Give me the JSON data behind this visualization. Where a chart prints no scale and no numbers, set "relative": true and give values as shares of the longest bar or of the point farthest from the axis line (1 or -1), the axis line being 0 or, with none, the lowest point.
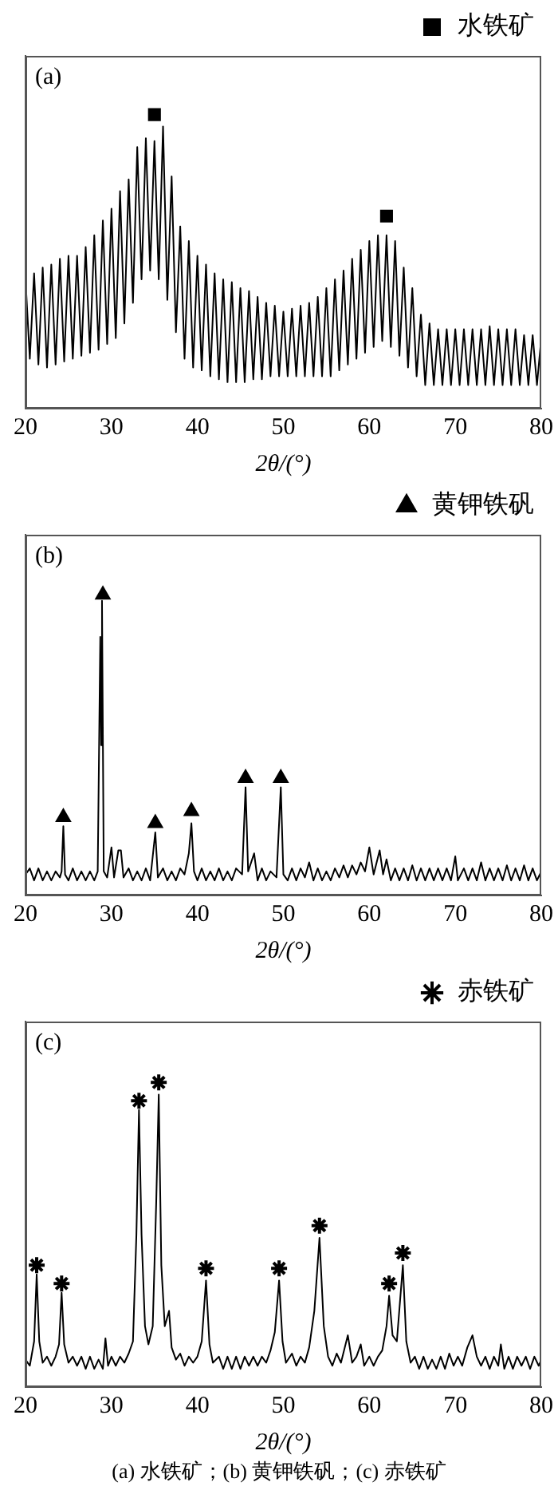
{
  "chart_data": [
    {
      "type": "line",
      "relative": true,
      "xlabel": "2θ/(°)",
      "xlim": [
        20,
        80
      ],
      "xticks": [
        20,
        30,
        40,
        50,
        60,
        70,
        80
      ],
      "grid": false,
      "legend": "top right",
      "annotations": [
        "(a)"
      ],
      "x": [
        20,
        20.5,
        21,
        21.5,
        22,
        22.5,
        23,
        23.5,
        24,
        24.5,
        25,
        25.5,
        26,
        26.5,
        27,
        27.5,
        28,
        28.5,
        29,
        29.5,
        30,
        30.5,
        31,
        31.5,
        32,
        32.5,
        33,
        33.5,
        34,
        34.5,
        35,
        35.5,
        36,
        36.5,
        37,
        37.5,
        38,
        38.5,
        39,
        39.5,
        40,
        40.5,
        41,
        41.5,
        42,
        42.5,
        43,
        43.5,
        44,
        44.5,
        45,
        45.5,
        46,
        46.5,
        47,
        47.5,
        48,
        48.5,
        49,
        49.5,
        50,
        50.5,
        51,
        51.5,
        52,
        52.5,
        53,
        53.5,
        54,
        54.5,
        55,
        55.5,
        56,
        56.5,
        57,
        57.5,
        58,
        58.5,
        59,
        59.5,
        60,
        60.5,
        61,
        61.5,
        62,
        62.5,
        63,
        63.5,
        64,
        64.5,
        65,
        65.5,
        66,
        66.5,
        67,
        67.5,
        68,
        68.5,
        69,
        69.5,
        70,
        70.5,
        71,
        71.5,
        72,
        72.5,
        73,
        73.5,
        74,
        74.5,
        75,
        75.5,
        76,
        76.5,
        77,
        77.5,
        78,
        78.5,
        79,
        79.5,
        80
      ],
      "series": [
        {
          "color": "#000000",
          "values": [
            0.44,
            0.17,
            0.46,
            0.15,
            0.48,
            0.14,
            0.49,
            0.15,
            0.51,
            0.16,
            0.52,
            0.17,
            0.52,
            0.18,
            0.55,
            0.19,
            0.59,
            0.2,
            0.64,
            0.22,
            0.68,
            0.24,
            0.74,
            0.29,
            0.78,
            0.36,
            0.89,
            0.44,
            0.92,
            0.47,
            0.91,
            0.44,
            0.96,
            0.37,
            0.79,
            0.26,
            0.62,
            0.17,
            0.57,
            0.14,
            0.52,
            0.13,
            0.49,
            0.11,
            0.46,
            0.1,
            0.44,
            0.09,
            0.43,
            0.09,
            0.41,
            0.09,
            0.4,
            0.1,
            0.38,
            0.1,
            0.36,
            0.11,
            0.35,
            0.11,
            0.33,
            0.11,
            0.34,
            0.11,
            0.35,
            0.11,
            0.36,
            0.11,
            0.38,
            0.11,
            0.41,
            0.11,
            0.44,
            0.13,
            0.47,
            0.15,
            0.51,
            0.17,
            0.54,
            0.19,
            0.57,
            0.21,
            0.59,
            0.23,
            0.59,
            0.21,
            0.57,
            0.18,
            0.48,
            0.14,
            0.41,
            0.11,
            0.32,
            0.08,
            0.29,
            0.08,
            0.27,
            0.08,
            0.27,
            0.08,
            0.27,
            0.08,
            0.27,
            0.08,
            0.27,
            0.08,
            0.27,
            0.08,
            0.28,
            0.08,
            0.27,
            0.08,
            0.27,
            0.08,
            0.27,
            0.08,
            0.25,
            0.08,
            0.25,
            0.08,
            0.24
          ]
        },
        {
          "type": "scatter",
          "name": "水铁矿",
          "color": "#000000",
          "marker": "square",
          "x": [
            35,
            62
          ],
          "values": [
            1,
            0.655
          ]
        }
      ]
    },
    {
      "type": "line",
      "relative": true,
      "xlabel": "2θ/(°)",
      "xlim": [
        20,
        80
      ],
      "xticks": [
        20,
        30,
        40,
        50,
        60,
        70,
        80
      ],
      "grid": false,
      "legend": "top right",
      "annotations": [
        "(b)"
      ],
      "x": [
        20,
        20.5,
        21,
        21.5,
        22,
        22.5,
        23,
        23.5,
        24,
        24.2,
        24.4,
        24.6,
        25,
        25.5,
        26,
        26.5,
        27,
        27.5,
        28,
        28.4,
        28.7,
        28.8,
        28.9,
        29.1,
        29.5,
        30,
        30.3,
        30.8,
        31.1,
        31.4,
        32,
        32.5,
        33,
        33.5,
        34,
        34.5,
        35.1,
        35.4,
        36,
        36.5,
        37,
        37.5,
        38,
        38.5,
        39,
        39.3,
        39.6,
        40,
        40.5,
        41,
        41.5,
        42,
        42.5,
        43,
        43.5,
        44,
        44.5,
        45.2,
        45.6,
        45.9,
        46.6,
        47,
        47.5,
        48,
        48.5,
        49.2,
        49.7,
        50,
        50.5,
        51,
        51.5,
        52,
        52.5,
        53,
        53.5,
        54,
        54.5,
        55,
        55.5,
        56,
        56.5,
        57,
        57.5,
        58,
        58.5,
        59,
        59.5,
        60,
        60.5,
        61.2,
        61.6,
        62,
        62.5,
        63,
        63.5,
        64,
        64.5,
        65,
        65.5,
        66,
        66.5,
        67,
        67.5,
        68,
        68.5,
        69,
        69.5,
        70,
        70.3,
        71,
        71.5,
        72,
        72.5,
        73,
        73.5,
        74,
        74.5,
        75,
        75.5,
        76,
        76.5,
        77,
        77.5,
        78,
        78.5,
        79,
        79.5,
        80
      ],
      "series": [
        {
          "color": "#000000",
          "values": [
            0.07,
            0.09,
            0.05,
            0.09,
            0.05,
            0.08,
            0.05,
            0.08,
            0.06,
            0.08,
            0.23,
            0.07,
            0.05,
            0.09,
            0.05,
            0.08,
            0.05,
            0.08,
            0.05,
            0.08,
            0.86,
            0.5,
            0.98,
            0.08,
            0.06,
            0.16,
            0.06,
            0.15,
            0.15,
            0.06,
            0.09,
            0.05,
            0.08,
            0.05,
            0.09,
            0.05,
            0.21,
            0.06,
            0.09,
            0.05,
            0.08,
            0.05,
            0.09,
            0.07,
            0.14,
            0.24,
            0.08,
            0.05,
            0.09,
            0.05,
            0.08,
            0.05,
            0.09,
            0.05,
            0.08,
            0.05,
            0.09,
            0.07,
            0.36,
            0.08,
            0.14,
            0.05,
            0.09,
            0.05,
            0.08,
            0.06,
            0.36,
            0.07,
            0.05,
            0.09,
            0.05,
            0.09,
            0.06,
            0.11,
            0.05,
            0.09,
            0.05,
            0.08,
            0.05,
            0.09,
            0.06,
            0.1,
            0.06,
            0.1,
            0.07,
            0.11,
            0.08,
            0.16,
            0.07,
            0.15,
            0.07,
            0.12,
            0.05,
            0.09,
            0.05,
            0.09,
            0.05,
            0.1,
            0.05,
            0.09,
            0.05,
            0.09,
            0.05,
            0.09,
            0.05,
            0.09,
            0.05,
            0.13,
            0.05,
            0.09,
            0.05,
            0.09,
            0.05,
            0.11,
            0.05,
            0.09,
            0.05,
            0.09,
            0.05,
            0.1,
            0.05,
            0.09,
            0.05,
            0.1,
            0.05,
            0.09,
            0.05,
            0.08
          ]
        },
        {
          "type": "scatter",
          "name": "黄钾铁矾",
          "color": "#000000",
          "marker": "triangle",
          "x": [
            24.4,
            29,
            35.1,
            39.3,
            45.6,
            49.7
          ],
          "values": [
            0.26,
            1,
            0.24,
            0.28,
            0.39,
            0.39
          ]
        }
      ]
    },
    {
      "type": "line",
      "relative": true,
      "xlabel": "2θ/(°)",
      "xlim": [
        20,
        80
      ],
      "xticks": [
        20,
        30,
        40,
        50,
        60,
        70,
        80
      ],
      "grid": false,
      "legend": "top right",
      "annotations": [
        "(c)",
        "(a) 水铁矿；(b) 黄钾铁矾；(c) 赤铁矿"
      ],
      "x": [
        20,
        20.5,
        21,
        21.3,
        21.6,
        22,
        22.5,
        23,
        23.5,
        23.9,
        24.2,
        24.5,
        25,
        25.5,
        26,
        26.5,
        27,
        27.5,
        28,
        28.5,
        29,
        29.3,
        29.6,
        30,
        30.5,
        31,
        31.5,
        32,
        32.5,
        32.9,
        33.2,
        33.5,
        33.9,
        34.3,
        34.8,
        35.2,
        35.5,
        35.8,
        36.2,
        36.7,
        37,
        37.5,
        38,
        38.5,
        39,
        39.5,
        40,
        40.5,
        41,
        41.4,
        41.8,
        42.5,
        43,
        43.5,
        44,
        44.5,
        45,
        45.5,
        46,
        46.5,
        47,
        47.5,
        48,
        48.5,
        49,
        49.5,
        49.9,
        50.3,
        51,
        51.5,
        52,
        52.5,
        53,
        53.6,
        54.2,
        54.7,
        55.2,
        55.7,
        56.2,
        56.7,
        57.5,
        58,
        58.5,
        59,
        59.4,
        60,
        60.5,
        61,
        61.5,
        62,
        62.3,
        62.7,
        63.2,
        63.9,
        64.3,
        64.8,
        65.3,
        65.8,
        66.3,
        66.8,
        67.3,
        67.8,
        68.3,
        68.8,
        69.3,
        69.8,
        70.3,
        70.8,
        71.4,
        72,
        72.5,
        73,
        73.5,
        74,
        74.5,
        75,
        75.3,
        75.7,
        76.2,
        76.7,
        77.2,
        77.7,
        78.2,
        78.7,
        79.2,
        79.7,
        80
      ],
      "series": [
        {
          "color": "#000000",
          "values": [
            0.09,
            0.07,
            0.15,
            0.37,
            0.15,
            0.08,
            0.1,
            0.07,
            0.1,
            0.14,
            0.31,
            0.14,
            0.08,
            0.1,
            0.07,
            0.1,
            0.06,
            0.1,
            0.06,
            0.09,
            0.06,
            0.16,
            0.07,
            0.1,
            0.07,
            0.1,
            0.08,
            0.11,
            0.15,
            0.5,
            0.91,
            0.5,
            0.2,
            0.14,
            0.2,
            0.6,
            0.96,
            0.4,
            0.2,
            0.25,
            0.13,
            0.09,
            0.11,
            0.07,
            0.1,
            0.08,
            0.1,
            0.15,
            0.35,
            0.14,
            0.08,
            0.1,
            0.06,
            0.1,
            0.06,
            0.1,
            0.06,
            0.1,
            0.07,
            0.1,
            0.07,
            0.1,
            0.08,
            0.12,
            0.18,
            0.35,
            0.15,
            0.08,
            0.11,
            0.07,
            0.1,
            0.08,
            0.13,
            0.25,
            0.49,
            0.2,
            0.1,
            0.07,
            0.11,
            0.08,
            0.17,
            0.08,
            0.1,
            0.14,
            0.07,
            0.1,
            0.07,
            0.1,
            0.12,
            0.2,
            0.3,
            0.17,
            0.15,
            0.4,
            0.15,
            0.08,
            0.1,
            0.06,
            0.1,
            0.06,
            0.09,
            0.06,
            0.1,
            0.06,
            0.11,
            0.07,
            0.1,
            0.07,
            0.13,
            0.17,
            0.1,
            0.07,
            0.1,
            0.06,
            0.1,
            0.07,
            0.14,
            0.06,
            0.1,
            0.06,
            0.1,
            0.07,
            0.1,
            0.06,
            0.1,
            0.07,
            0.09
          ]
        },
        {
          "type": "scatter",
          "name": "赤铁矿",
          "color": "#000000",
          "marker": "cross",
          "x": [
            21.3,
            24.2,
            33.2,
            35.5,
            41,
            49.5,
            54.2,
            62.3,
            63.9
          ],
          "values": [
            0.4,
            0.34,
            0.94,
            1,
            0.39,
            0.39,
            0.53,
            0.34,
            0.44
          ]
        }
      ]
    }
  ]
}
